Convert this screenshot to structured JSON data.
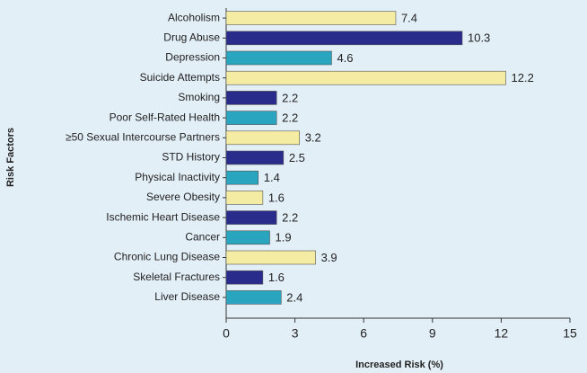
{
  "chart_data": {
    "type": "bar",
    "orientation": "horizontal",
    "y_label": "Risk Factors",
    "x_label": "Increased Risk (%)",
    "categories": [
      "Alcoholism",
      "Drug Abuse",
      "Depression",
      "Suicide Attempts",
      "Smoking",
      "Poor Self-Rated Health",
      "≥50 Sexual Intercourse Partners",
      "STD History",
      "Physical Inactivity",
      "Severe Obesity",
      "Ischemic Heart Disease",
      "Cancer",
      "Chronic Lung Disease",
      "Skeletal Fractures",
      "Liver Disease"
    ],
    "values": [
      7.4,
      10.3,
      4.6,
      12.2,
      2.2,
      2.2,
      3.2,
      2.5,
      1.4,
      1.6,
      2.2,
      1.9,
      3.9,
      1.6,
      2.4
    ],
    "colors": [
      "#f3eca2",
      "#2a2c8c",
      "#2aa5bf",
      "#f3eca2",
      "#2a2c8c",
      "#2aa5bf",
      "#f3eca2",
      "#2a2c8c",
      "#2aa5bf",
      "#f3eca2",
      "#2a2c8c",
      "#2aa5bf",
      "#f3eca2",
      "#2a2c8c",
      "#2aa5bf"
    ],
    "xlim": [
      0,
      15
    ],
    "xticks": [
      0,
      3,
      6,
      9,
      12,
      15
    ]
  }
}
